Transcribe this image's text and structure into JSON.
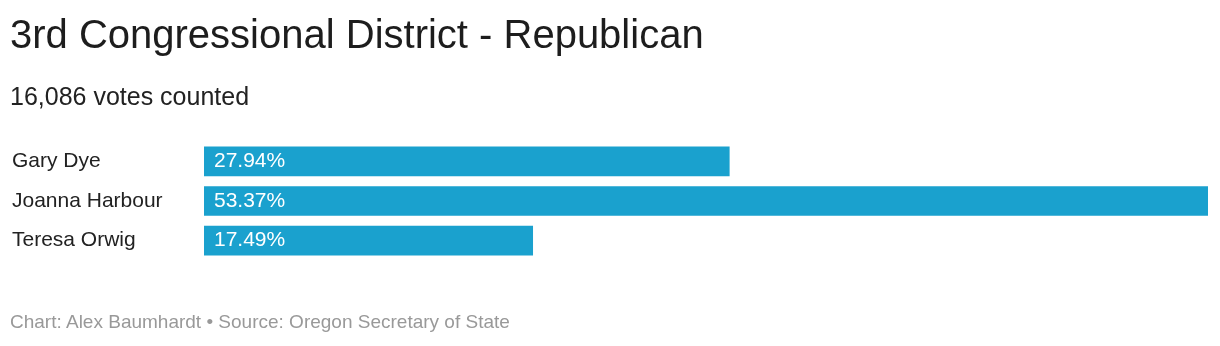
{
  "chart_data": {
    "type": "bar",
    "orientation": "horizontal",
    "title": "3rd Congressional District - Republican",
    "subtitle": "16,086 votes counted",
    "categories": [
      "Gary Dye",
      "Joanna Harbour",
      "Teresa Orwig"
    ],
    "values": [
      27.94,
      53.37,
      17.49
    ],
    "color": "#1aa1ce",
    "value_labels": [
      "27.94%",
      "53.37%",
      "17.49%"
    ],
    "xlim": [
      0,
      53.37
    ],
    "legend": false,
    "annotations": [
      "Chart: Alex Baumhardt • Source: Oregon Secretary of State"
    ]
  }
}
